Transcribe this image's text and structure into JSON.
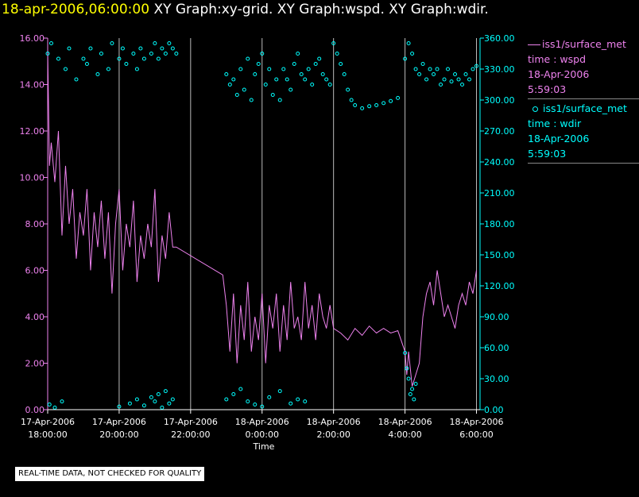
{
  "header": {
    "date_time": "18-apr-2006,06:00:00",
    "graphs": "XY Graph:xy-grid.  XY Graph:wspd.  XY Graph:wdir."
  },
  "legend": {
    "wspd": [
      "iss1/surface_met",
      "time : wspd",
      "18-Apr-2006",
      "5:59:03"
    ],
    "wdir": [
      "iss1/surface_met",
      "time : wdir",
      "18-Apr-2006",
      "5:59:03"
    ]
  },
  "disclaimer": "REAL-TIME DATA, NOT CHECKED FOR QUALITY",
  "colors": {
    "wspd": "#ee82ee",
    "wdir": "#00ffff",
    "grid": "#ffffff",
    "background": "#000000"
  },
  "chart_data": {
    "type": "line",
    "xlabel": "Time",
    "x_range": [
      "17-Apr-2006 18:00:00",
      "18-Apr-2006 06:00:00"
    ],
    "x_ticks": [
      {
        "date": "17-Apr-2006",
        "time": "18:00:00",
        "hour": 0
      },
      {
        "date": "17-Apr-2006",
        "time": "20:00:00",
        "hour": 2
      },
      {
        "date": "17-Apr-2006",
        "time": "22:00:00",
        "hour": 4
      },
      {
        "date": "18-Apr-2006",
        "time": "0:00:00",
        "hour": 6
      },
      {
        "date": "18-Apr-2006",
        "time": "2:00:00",
        "hour": 8
      },
      {
        "date": "18-Apr-2006",
        "time": "4:00:00",
        "hour": 10
      },
      {
        "date": "18-Apr-2006",
        "time": "6:00:00",
        "hour": 12
      }
    ],
    "y_left": {
      "ylim": [
        0,
        16
      ],
      "ticks": [
        "0.00",
        "2.00",
        "4.00",
        "6.00",
        "8.00",
        "10.00",
        "12.00",
        "14.00",
        "16.00"
      ]
    },
    "y_right": {
      "ylim": [
        0,
        360
      ],
      "ticks": [
        "0.00",
        "30.00",
        "60.00",
        "90.00",
        "120.00",
        "150.00",
        "180.00",
        "210.00",
        "240.00",
        "270.00",
        "300.00",
        "330.00",
        "360.00"
      ]
    },
    "grid": "vertical",
    "legend_position": "right",
    "series": [
      {
        "name": "iss1/surface_met time : wspd",
        "axis": "left",
        "style": "line",
        "x_hours": [
          0,
          0.05,
          0.1,
          0.2,
          0.3,
          0.4,
          0.5,
          0.6,
          0.7,
          0.8,
          0.9,
          1.0,
          1.1,
          1.2,
          1.3,
          1.4,
          1.5,
          1.6,
          1.7,
          1.8,
          1.9,
          2.0,
          2.1,
          2.2,
          2.3,
          2.4,
          2.5,
          2.6,
          2.7,
          2.8,
          2.9,
          3.0,
          3.1,
          3.2,
          3.3,
          3.4,
          3.5,
          3.6,
          4.9,
          5.0,
          5.1,
          5.2,
          5.3,
          5.4,
          5.5,
          5.6,
          5.7,
          5.8,
          5.9,
          6.0,
          6.1,
          6.2,
          6.3,
          6.4,
          6.5,
          6.6,
          6.7,
          6.8,
          6.9,
          7.0,
          7.1,
          7.2,
          7.3,
          7.4,
          7.5,
          7.6,
          7.7,
          7.8,
          7.9,
          8.0,
          8.2,
          8.4,
          8.6,
          8.8,
          9.0,
          9.2,
          9.4,
          9.6,
          9.8,
          10.0,
          10.05,
          10.1,
          10.2,
          10.3,
          10.4,
          10.5,
          10.6,
          10.7,
          10.8,
          10.9,
          11.0,
          11.1,
          11.2,
          11.3,
          11.4,
          11.5,
          11.6,
          11.7,
          11.8,
          11.9,
          12.0
        ],
        "values": [
          15.5,
          10.5,
          11.5,
          9.8,
          12.0,
          7.5,
          10.5,
          8.0,
          9.5,
          6.5,
          8.5,
          7.5,
          9.5,
          6.0,
          8.5,
          7.0,
          9.0,
          6.5,
          8.5,
          5.0,
          8.0,
          9.5,
          6.0,
          8.0,
          7.0,
          9.0,
          5.5,
          7.5,
          6.5,
          8.0,
          7.0,
          9.5,
          5.5,
          7.5,
          6.5,
          8.5,
          7.0,
          7.0,
          5.8,
          4.5,
          2.5,
          5.0,
          2.0,
          4.5,
          3.0,
          5.5,
          2.5,
          4.0,
          3.0,
          5.0,
          2.0,
          4.5,
          3.5,
          5.0,
          2.5,
          4.5,
          3.0,
          5.5,
          3.5,
          4.0,
          3.0,
          5.5,
          3.5,
          4.5,
          3.0,
          5.0,
          4.0,
          3.5,
          4.5,
          3.5,
          3.3,
          3.0,
          3.5,
          3.2,
          3.6,
          3.3,
          3.5,
          3.3,
          3.4,
          2.5,
          1.5,
          2.5,
          1.0,
          1.5,
          2.0,
          4.0,
          5.0,
          5.5,
          4.5,
          6.0,
          5.0,
          4.0,
          4.5,
          4.0,
          3.5,
          4.5,
          5.0,
          4.5,
          5.5,
          5.0,
          6.0
        ]
      },
      {
        "name": "iss1/surface_met time : wdir",
        "axis": "right",
        "style": "points",
        "x_hours": [
          0,
          0.1,
          0.3,
          0.5,
          0.6,
          0.8,
          1.0,
          1.1,
          1.2,
          1.4,
          1.5,
          1.7,
          1.8,
          2.0,
          2.1,
          2.2,
          2.4,
          2.5,
          2.6,
          2.7,
          2.9,
          3.0,
          3.1,
          3.2,
          3.3,
          3.4,
          3.5,
          3.6,
          0.05,
          0.2,
          0.4,
          2.0,
          2.3,
          2.5,
          2.7,
          2.9,
          3.0,
          3.1,
          3.2,
          3.3,
          3.4,
          3.5,
          5.0,
          5.1,
          5.2,
          5.3,
          5.4,
          5.5,
          5.6,
          5.7,
          5.8,
          5.9,
          6.0,
          6.1,
          6.2,
          6.3,
          6.4,
          6.5,
          6.6,
          6.7,
          6.8,
          6.9,
          7.0,
          7.1,
          7.2,
          7.3,
          7.4,
          7.5,
          7.6,
          7.7,
          7.8,
          7.9,
          8.0,
          8.1,
          8.2,
          8.3,
          8.4,
          8.5,
          8.6,
          8.8,
          9.0,
          9.2,
          9.4,
          9.6,
          9.8,
          10.0,
          10.1,
          10.2,
          10.3,
          10.4,
          10.5,
          10.6,
          10.7,
          10.8,
          10.9,
          11.0,
          11.1,
          11.2,
          11.3,
          11.4,
          11.5,
          11.6,
          11.7,
          11.8,
          11.9,
          12.0,
          5.0,
          5.2,
          5.4,
          5.6,
          5.8,
          6.0,
          6.2,
          6.5,
          6.8,
          7.0,
          7.2,
          10.0,
          10.05,
          10.1,
          10.15,
          10.2,
          10.25,
          10.3
        ],
        "values": [
          345,
          355,
          340,
          330,
          350,
          320,
          340,
          335,
          350,
          325,
          345,
          330,
          355,
          340,
          350,
          335,
          345,
          330,
          350,
          340,
          345,
          355,
          340,
          350,
          345,
          355,
          350,
          345,
          5,
          2,
          8,
          3,
          6,
          10,
          4,
          12,
          8,
          15,
          2,
          18,
          6,
          10,
          325,
          315,
          320,
          305,
          330,
          310,
          340,
          300,
          325,
          335,
          345,
          315,
          330,
          305,
          320,
          300,
          330,
          320,
          310,
          335,
          345,
          325,
          320,
          330,
          315,
          335,
          340,
          325,
          320,
          315,
          355,
          345,
          335,
          325,
          310,
          300,
          295,
          292,
          294,
          295,
          297,
          299,
          302,
          340,
          355,
          345,
          330,
          325,
          335,
          320,
          330,
          325,
          330,
          315,
          320,
          330,
          318,
          325,
          320,
          315,
          325,
          320,
          330,
          333,
          10,
          15,
          20,
          8,
          5,
          3,
          12,
          18,
          6,
          10,
          8,
          55,
          40,
          30,
          15,
          20,
          10,
          25
        ]
      }
    ]
  }
}
